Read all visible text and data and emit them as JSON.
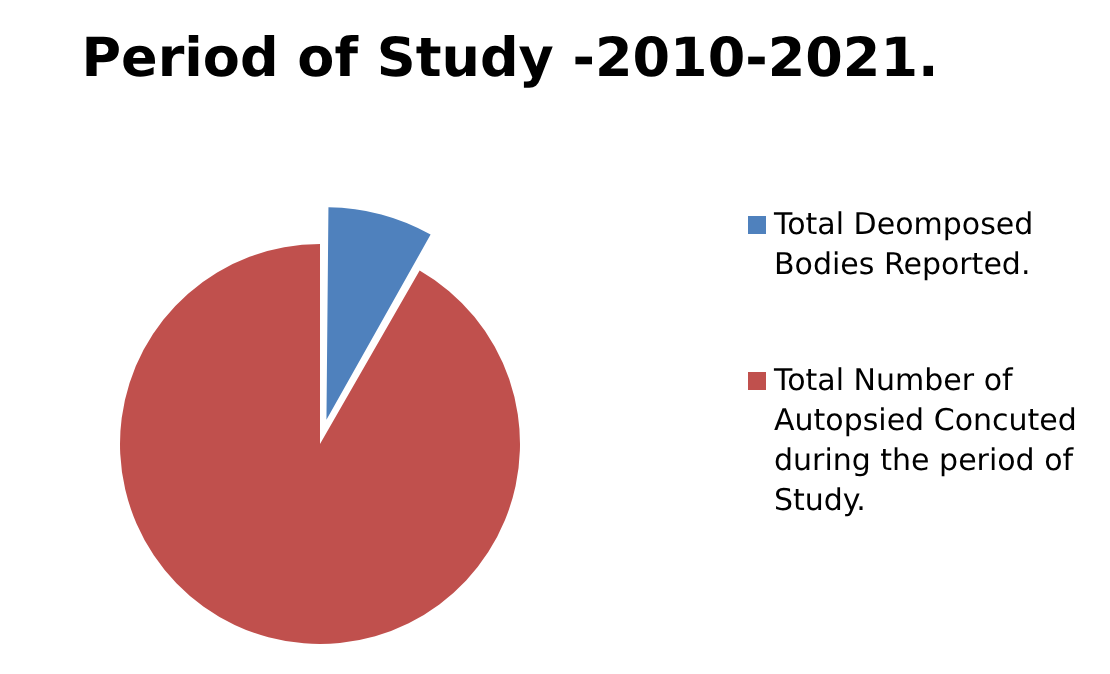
{
  "chart_data": {
    "type": "pie",
    "title": "Period of Study -2010-2021.",
    "categories": [
      "Total Deomposed Bodies Reported.",
      "Total Number of Autopsied Concuted during the period of Study."
    ],
    "values": [
      8.3,
      91.7
    ],
    "colors": [
      "#4f81bd",
      "#c0504d"
    ],
    "legend": "right"
  }
}
